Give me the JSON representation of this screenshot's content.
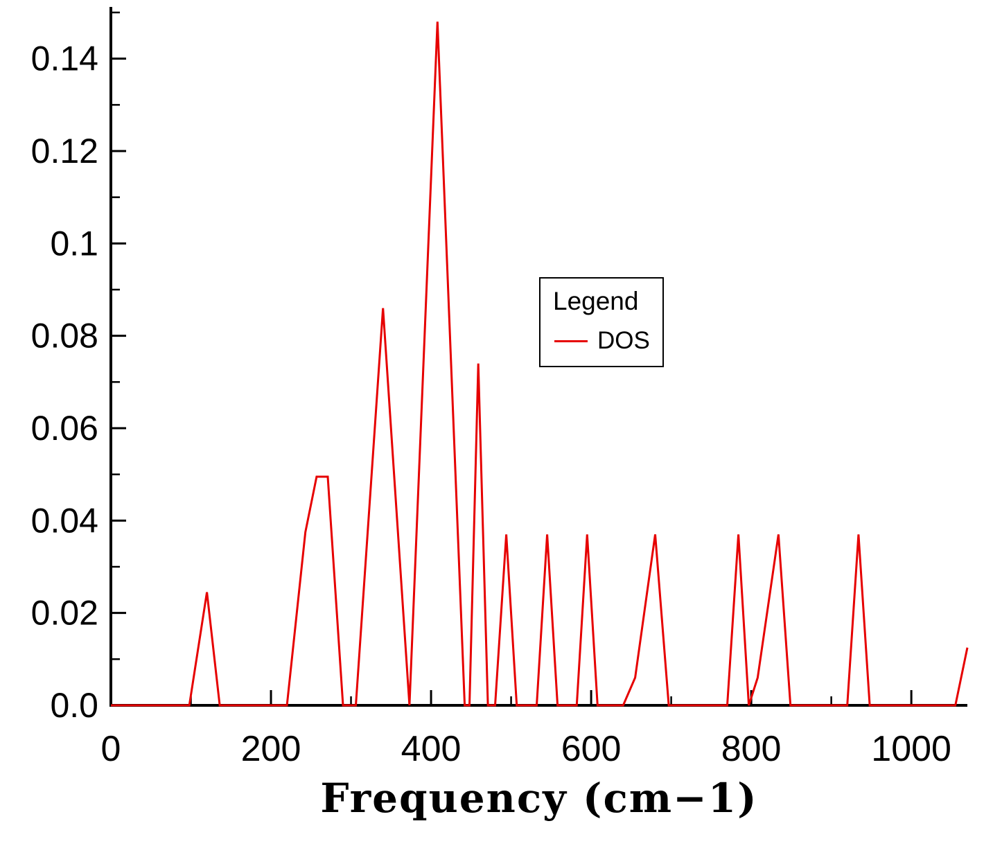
{
  "chart_data": {
    "type": "line",
    "title": "",
    "xlabel": "Frequency (cm−1)",
    "ylabel": "",
    "xlim": [
      0,
      1070
    ],
    "ylim": [
      0,
      0.15
    ],
    "grid": false,
    "legend": {
      "title": "Legend",
      "position": "upper-middle-right",
      "entries": [
        {
          "label": "DOS",
          "color": "#e60000"
        }
      ]
    },
    "x_ticks": {
      "major": [
        {
          "v": 0,
          "label": "0"
        },
        {
          "v": 200,
          "label": "200"
        },
        {
          "v": 400,
          "label": "400"
        },
        {
          "v": 600,
          "label": "600"
        },
        {
          "v": 800,
          "label": "800"
        },
        {
          "v": 1000,
          "label": "1000"
        }
      ],
      "minor": [
        100,
        300,
        500,
        700,
        900
      ]
    },
    "y_ticks": {
      "major": [
        {
          "v": 0,
          "label": "0.0"
        },
        {
          "v": 0.02,
          "label": "0.02"
        },
        {
          "v": 0.04,
          "label": "0.04"
        },
        {
          "v": 0.06,
          "label": "0.06"
        },
        {
          "v": 0.08,
          "label": "0.08"
        },
        {
          "v": 0.1,
          "label": "0.1"
        },
        {
          "v": 0.12,
          "label": "0.12"
        },
        {
          "v": 0.14,
          "label": "0.14"
        }
      ],
      "minor": [
        0.01,
        0.03,
        0.05,
        0.07,
        0.09,
        0.11,
        0.13,
        0.15
      ]
    },
    "series": [
      {
        "name": "DOS",
        "color": "#e60000",
        "points": [
          [
            0,
            0
          ],
          [
            98,
            0
          ],
          [
            120,
            0.0245
          ],
          [
            136,
            0
          ],
          [
            220,
            0
          ],
          [
            243,
            0.0375
          ],
          [
            257,
            0.0495
          ],
          [
            271,
            0.0495
          ],
          [
            290,
            0
          ],
          [
            306,
            0
          ],
          [
            340,
            0.086
          ],
          [
            373,
            0
          ],
          [
            408,
            0.148
          ],
          [
            442,
            0
          ],
          [
            448,
            0
          ],
          [
            459,
            0.074
          ],
          [
            471,
            0
          ],
          [
            480,
            0
          ],
          [
            494,
            0.037
          ],
          [
            507,
            0
          ],
          [
            532,
            0
          ],
          [
            545,
            0.037
          ],
          [
            558,
            0
          ],
          [
            582,
            0
          ],
          [
            595,
            0.037
          ],
          [
            608,
            0
          ],
          [
            640,
            0
          ],
          [
            655,
            0.006
          ],
          [
            680,
            0.037
          ],
          [
            697,
            0
          ],
          [
            770,
            0
          ],
          [
            784,
            0.037
          ],
          [
            797,
            0
          ],
          [
            808,
            0.006
          ],
          [
            834,
            0.037
          ],
          [
            849,
            0
          ],
          [
            920,
            0
          ],
          [
            934,
            0.037
          ],
          [
            948,
            0
          ],
          [
            1055,
            0
          ],
          [
            1070,
            0.0125
          ]
        ]
      }
    ]
  },
  "colors": {
    "axis": "#000000",
    "background": "#ffffff",
    "line": "#e60000"
  }
}
